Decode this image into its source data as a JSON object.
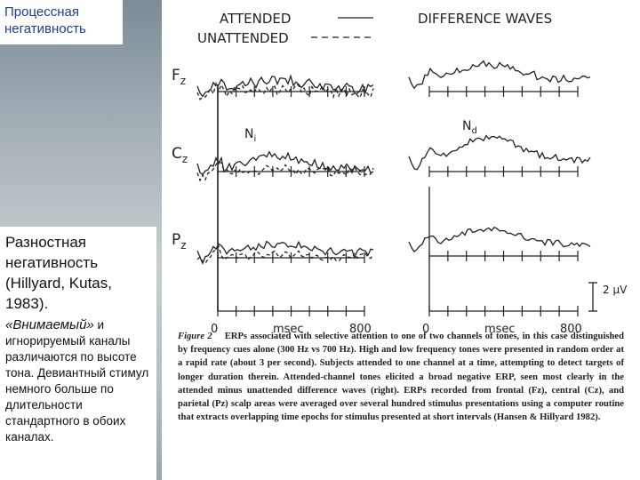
{
  "slide": {
    "title": "Процессная негативность",
    "heading": "Разностная негативность (Hillyard, Kutas, 1983).",
    "body_italic": "«Внимаемый»",
    "body": "и игнорируемый каналы различаются по высоте тона. Девиантный стимул немного больше по длительности стандартного в обоих каналах."
  },
  "figure": {
    "legend": [
      "ATTENDED",
      "UNATTENDED"
    ],
    "right_title": "DIFFERENCE WAVES",
    "channels": [
      {
        "main": "F",
        "sub": "z"
      },
      {
        "main": "C",
        "sub": "z"
      },
      {
        "main": "P",
        "sub": "z"
      }
    ],
    "peaks": [
      {
        "main": "N",
        "sub": "i"
      },
      {
        "main": "N",
        "sub": "d"
      }
    ],
    "left_axis": [
      "0",
      "msec",
      "800"
    ],
    "right_axis": [
      "0",
      "msec",
      "800"
    ],
    "scale": "2 μV",
    "caption_label": "Figure 2",
    "caption": "ERPs associated with selective attention to one of two channels of tones, in this case distinguished by frequency cues alone (300 Hz vs 700 Hz). High and low frequency tones were presented in random order at a rapid rate (about 3 per second). Subjects attended to one channel at a time, attempting to detect targets of longer duration therein. Attended-channel tones elicited a broad negative ERP, seen most clearly in the attended minus unattended difference waves (right). ERPs recorded from frontal (Fz), central (Cz), and parietal (Pz) scalp areas were averaged over several hundred stimulus presentations using a computer routine that extracts overlapping time epochs for stimulus presented at short intervals (Hansen & Hillyard 1982)."
  }
}
